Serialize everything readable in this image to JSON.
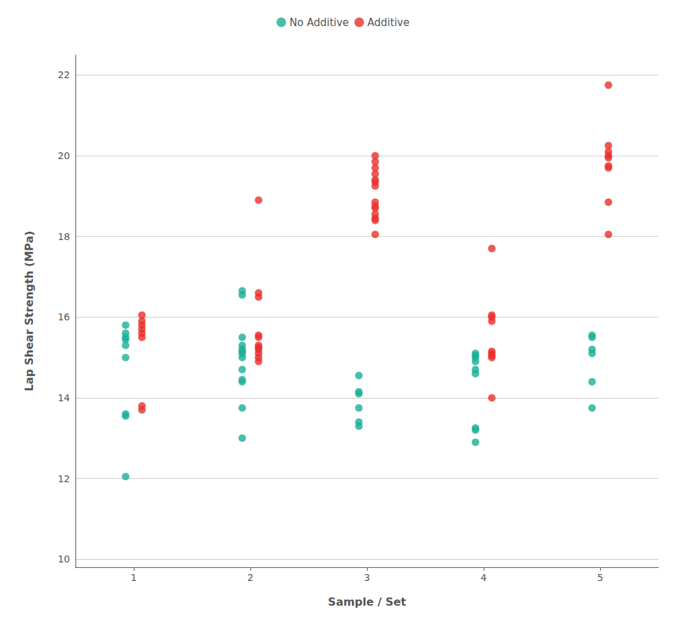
{
  "chart_data": {
    "type": "scatter",
    "xlabel": "Sample / Set",
    "ylabel": "Lap Shear Strength (MPa)",
    "x": [
      1,
      2,
      3,
      4,
      5
    ],
    "series": [
      {
        "name": "No Additive",
        "color": "#1aaf96",
        "values": [
          [
            12.05,
            13.55,
            13.6,
            15.0,
            15.3,
            15.45,
            15.5,
            15.6,
            15.8
          ],
          [
            13.0,
            13.75,
            14.4,
            14.45,
            14.7,
            15.0,
            15.1,
            15.15,
            15.2,
            15.3,
            15.5,
            16.55,
            16.65
          ],
          [
            13.3,
            13.4,
            13.75,
            14.1,
            14.15,
            14.55
          ],
          [
            12.9,
            13.2,
            13.25,
            14.6,
            14.7,
            14.9,
            15.0,
            15.05,
            15.1
          ],
          [
            13.75,
            14.4,
            15.1,
            15.2,
            15.5,
            15.55
          ]
        ]
      },
      {
        "name": "Additive",
        "color": "#e8302a",
        "values": [
          [
            13.7,
            13.8,
            15.5,
            15.6,
            15.7,
            15.8,
            15.9,
            16.05
          ],
          [
            14.9,
            15.0,
            15.1,
            15.2,
            15.25,
            15.3,
            15.5,
            15.55,
            16.5,
            16.6,
            18.9
          ],
          [
            18.05,
            18.4,
            18.45,
            18.55,
            18.7,
            18.75,
            18.85,
            19.25,
            19.35,
            19.4,
            19.55,
            19.7,
            19.85,
            20.0
          ],
          [
            14.0,
            15.0,
            15.05,
            15.1,
            15.15,
            15.9,
            16.0,
            16.05,
            17.7
          ],
          [
            18.05,
            18.85,
            19.7,
            19.75,
            19.95,
            20.0,
            20.1,
            20.25,
            21.75
          ]
        ]
      }
    ],
    "xlim": [
      0.5,
      5.5
    ],
    "xticks": [
      1,
      2,
      3,
      4,
      5
    ],
    "ylim": [
      9.8,
      22.5
    ],
    "yticks": [
      10,
      12,
      14,
      16,
      18,
      20,
      22
    ],
    "grid": true,
    "legend": "top",
    "marker": "circle"
  }
}
